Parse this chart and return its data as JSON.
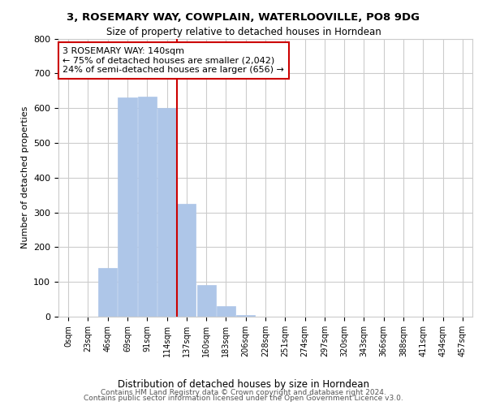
{
  "title1": "3, ROSEMARY WAY, COWPLAIN, WATERLOOVILLE, PO8 9DG",
  "title2": "Size of property relative to detached houses in Horndean",
  "xlabel": "Distribution of detached houses by size in Horndean",
  "ylabel": "Number of detached properties",
  "bar_labels": [
    "0sqm",
    "23sqm",
    "46sqm",
    "69sqm",
    "91sqm",
    "114sqm",
    "137sqm",
    "160sqm",
    "183sqm",
    "206sqm",
    "228sqm",
    "251sqm",
    "274sqm",
    "297sqm",
    "320sqm",
    "343sqm",
    "366sqm",
    "388sqm",
    "411sqm",
    "434sqm",
    "457sqm"
  ],
  "bar_heights": [
    0,
    0,
    140,
    630,
    632,
    600,
    325,
    90,
    30,
    5,
    0,
    0,
    0,
    0,
    0,
    0,
    0,
    0,
    0,
    0,
    0
  ],
  "bar_color": "#aec6e8",
  "highlight_bar_index": 6,
  "annotation_text": "3 ROSEMARY WAY: 140sqm\n← 75% of detached houses are smaller (2,042)\n24% of semi-detached houses are larger (656) →",
  "annotation_box_color": "#ffffff",
  "annotation_box_edge_color": "#cc0000",
  "property_line_color": "#cc0000",
  "ylim": [
    0,
    800
  ],
  "yticks": [
    0,
    100,
    200,
    300,
    400,
    500,
    600,
    700,
    800
  ],
  "footer1": "Contains HM Land Registry data © Crown copyright and database right 2024.",
  "footer2": "Contains public sector information licensed under the Open Government Licence v3.0.",
  "bg_color": "#ffffff",
  "grid_color": "#cccccc"
}
